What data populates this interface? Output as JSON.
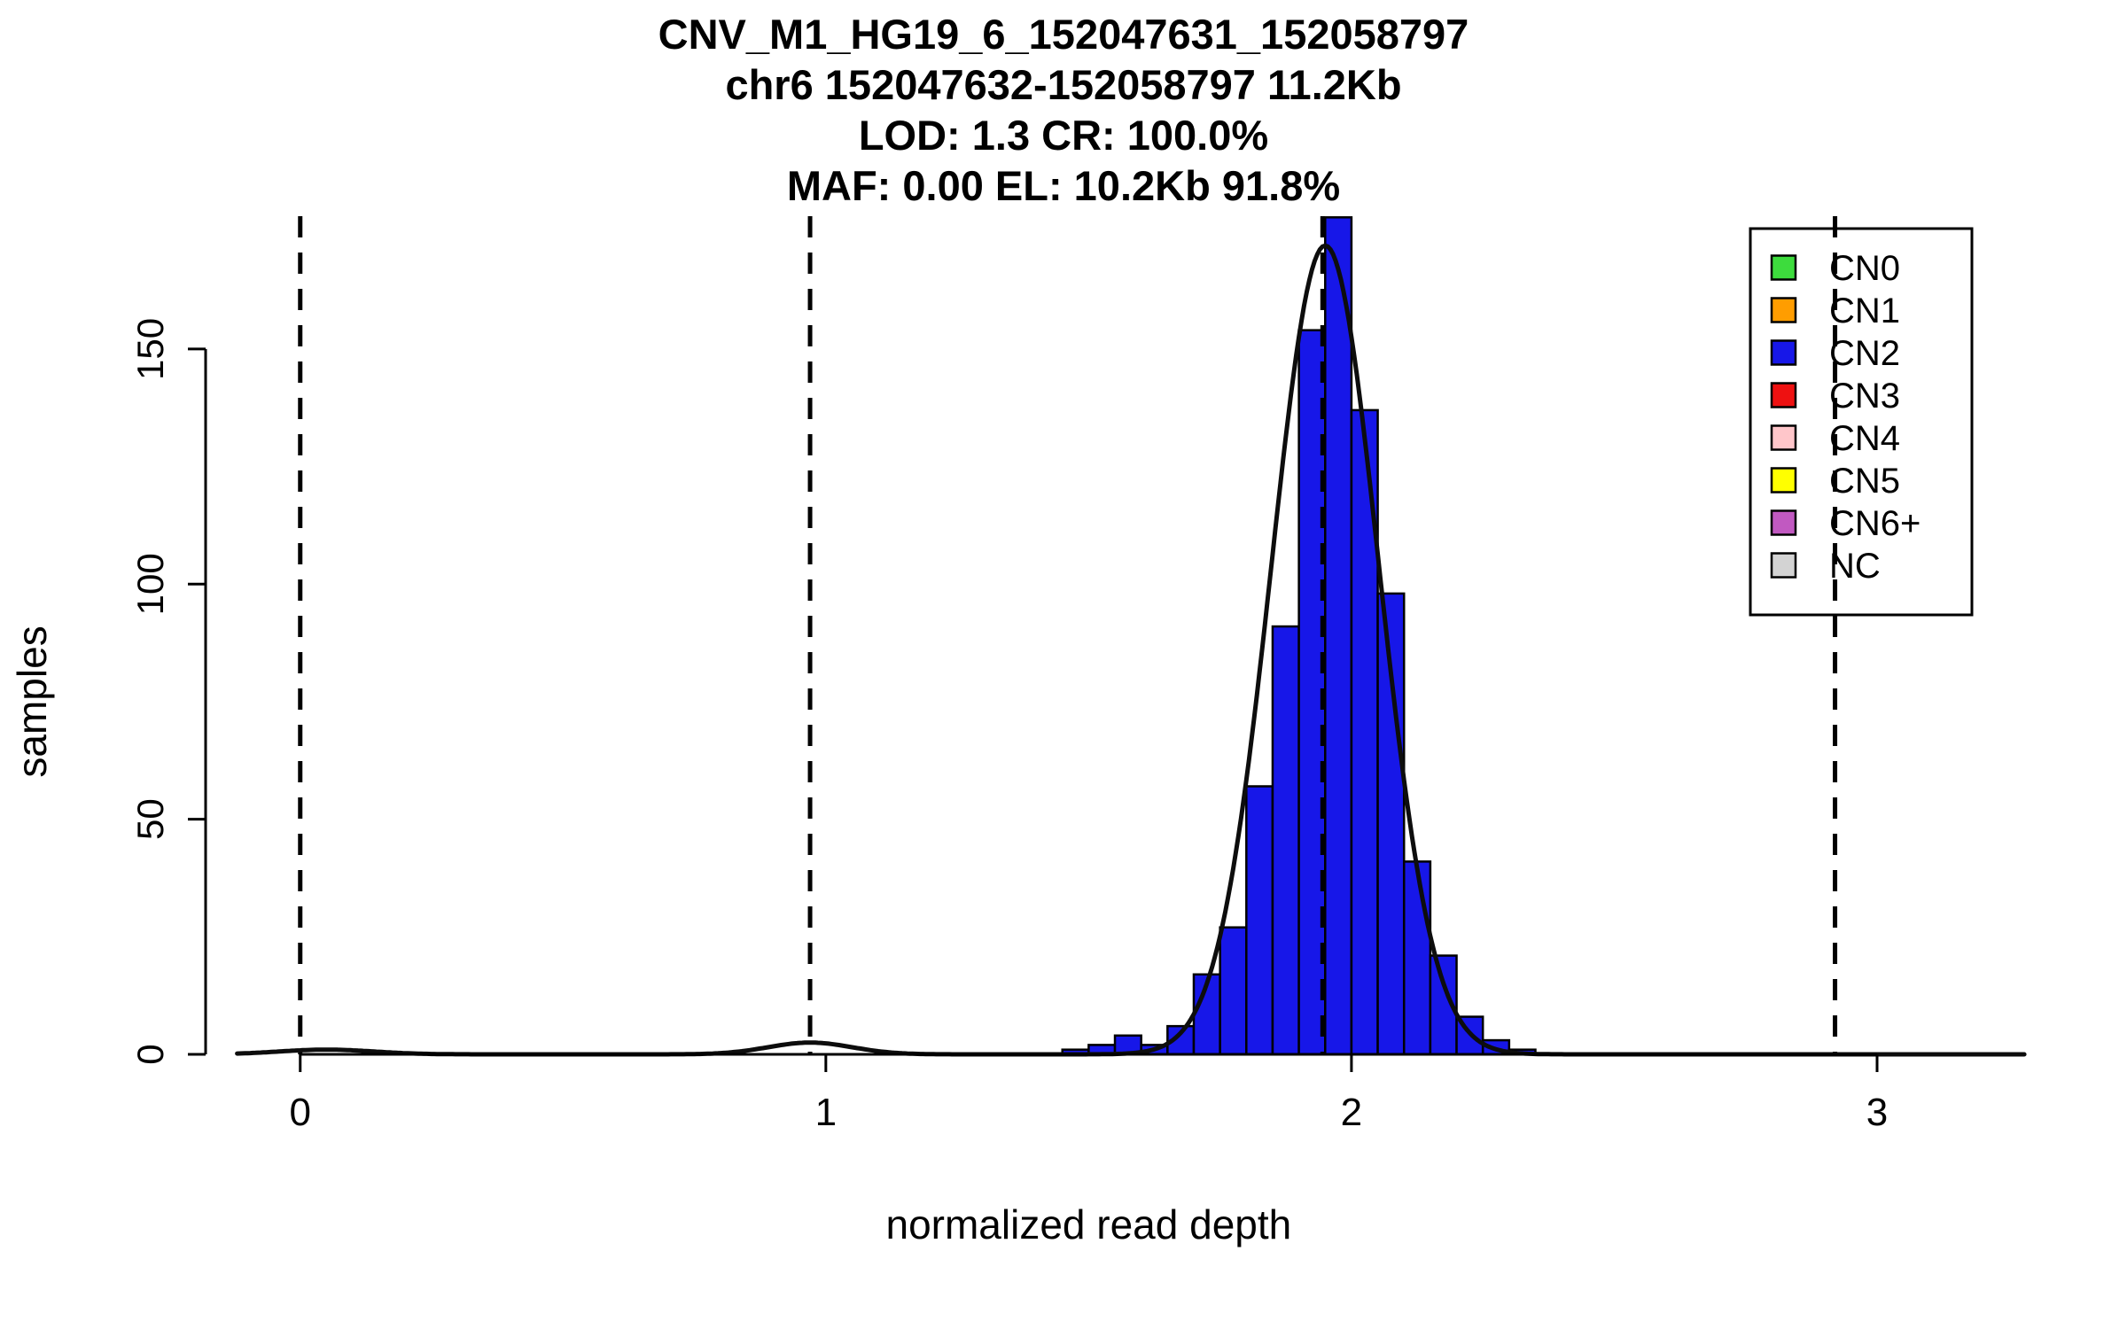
{
  "figure": {
    "titles": [
      "CNV_M1_HG19_6_152047631_152058797",
      "chr6 152047632-152058797 11.2Kb",
      "LOD: 1.3 CR: 100.0%",
      "MAF: 0.00 EL: 10.2Kb 91.8%"
    ]
  },
  "chart_data": {
    "type": "bar",
    "subtype": "histogram-with-density",
    "title": "CNV_M1_HG19_6_152047631_152058797 / chr6 152047632-152058797 11.2Kb / LOD: 1.3 CR: 100.0% / MAF: 0.00 EL: 10.2Kb 91.8%",
    "xlabel": "normalized read depth",
    "ylabel": "samples",
    "xlim": [
      -0.18,
      3.29
    ],
    "ylim": [
      0,
      179
    ],
    "x_ticks": [
      0,
      1,
      2,
      3
    ],
    "y_ticks": [
      0,
      50,
      100,
      150
    ],
    "grid": false,
    "bar_color": "#1717e8",
    "bar_edge_color": "#000000",
    "bin_width": 0.05,
    "bins": [
      {
        "x": 1.45,
        "count": 1
      },
      {
        "x": 1.5,
        "count": 2
      },
      {
        "x": 1.55,
        "count": 4
      },
      {
        "x": 1.6,
        "count": 2
      },
      {
        "x": 1.65,
        "count": 6
      },
      {
        "x": 1.7,
        "count": 17
      },
      {
        "x": 1.75,
        "count": 27
      },
      {
        "x": 1.8,
        "count": 57
      },
      {
        "x": 1.85,
        "count": 91
      },
      {
        "x": 1.9,
        "count": 154
      },
      {
        "x": 1.95,
        "count": 178
      },
      {
        "x": 2.0,
        "count": 137
      },
      {
        "x": 2.05,
        "count": 98
      },
      {
        "x": 2.1,
        "count": 41
      },
      {
        "x": 2.15,
        "count": 21
      },
      {
        "x": 2.2,
        "count": 8
      },
      {
        "x": 2.25,
        "count": 3
      },
      {
        "x": 2.3,
        "count": 1
      }
    ],
    "density_curve": {
      "color": "#0d0d0d",
      "components": [
        {
          "mean": 0.05,
          "sd": 0.09,
          "amplitude": 1.0
        },
        {
          "mean": 0.97,
          "sd": 0.08,
          "amplitude": 2.5
        },
        {
          "mean": 1.95,
          "sd": 0.102,
          "amplitude": 172
        }
      ]
    },
    "dashed_lines": {
      "meaning": "copy-number cluster means",
      "x_values": [
        0.0,
        0.97,
        1.945,
        2.92
      ]
    },
    "legend": {
      "position": "top-right",
      "entries": [
        {
          "label": "CN0",
          "color": "#3ddc3d"
        },
        {
          "label": "CN1",
          "color": "#ff9d00"
        },
        {
          "label": "CN2",
          "color": "#1717e8"
        },
        {
          "label": "CN3",
          "color": "#ee1111"
        },
        {
          "label": "CN4",
          "color": "#ffc6ca"
        },
        {
          "label": "CN5",
          "color": "#ffff00"
        },
        {
          "label": "CN6+",
          "color": "#c159c1"
        },
        {
          "label": "NC",
          "color": "#d3d3d3"
        }
      ]
    }
  }
}
